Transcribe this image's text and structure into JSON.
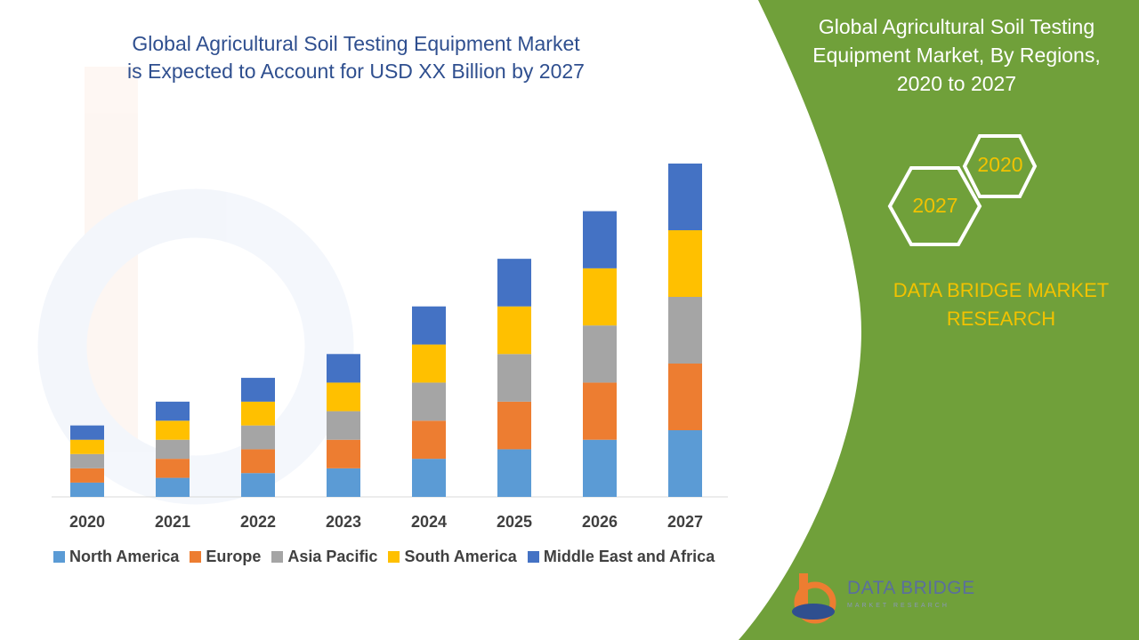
{
  "header": {
    "title_line1": "Global Agricultural Soil Testing Equipment Market",
    "title_line2": "is Expected to Account for USD XX Billion by 2027"
  },
  "side_panel": {
    "title_line1": "Global Agricultural Soil Testing",
    "title_line2": "Equipment Market, By Regions,",
    "title_line3": "2020 to 2027",
    "hex_small_label": "2020",
    "hex_large_label": "2027",
    "brand_line1": "DATA BRIDGE MARKET",
    "brand_line2": "RESEARCH",
    "panel_color": "#70a03a",
    "accent_color": "#f2c200"
  },
  "logo": {
    "name": "DATA BRIDGE",
    "tagline": "MARKET RESEARCH",
    "icon": "data-bridge-logo-icon"
  },
  "chart_data": {
    "type": "bar",
    "stacked": true,
    "categories": [
      "2020",
      "2021",
      "2022",
      "2023",
      "2024",
      "2025",
      "2026",
      "2027"
    ],
    "series": [
      {
        "name": "North America",
        "color": "#5b9bd5",
        "values": [
          3.0,
          4.0,
          5.0,
          6.0,
          8.0,
          10.0,
          12.0,
          14.0
        ]
      },
      {
        "name": "Europe",
        "color": "#ed7d31",
        "values": [
          3.0,
          4.0,
          5.0,
          6.0,
          8.0,
          10.0,
          12.0,
          14.0
        ]
      },
      {
        "name": "Asia Pacific",
        "color": "#a5a5a5",
        "values": [
          3.0,
          4.0,
          5.0,
          6.0,
          8.0,
          10.0,
          12.0,
          14.0
        ]
      },
      {
        "name": "South America",
        "color": "#ffc000",
        "values": [
          3.0,
          4.0,
          5.0,
          6.0,
          8.0,
          10.0,
          12.0,
          14.0
        ]
      },
      {
        "name": "Middle East and Africa",
        "color": "#4472c4",
        "values": [
          3.0,
          4.0,
          5.0,
          6.0,
          8.0,
          10.0,
          12.0,
          14.0
        ]
      }
    ],
    "ylim": [
      0,
      70
    ],
    "grid": false,
    "legend_position": "bottom",
    "title": "",
    "xlabel": "",
    "ylabel": ""
  }
}
